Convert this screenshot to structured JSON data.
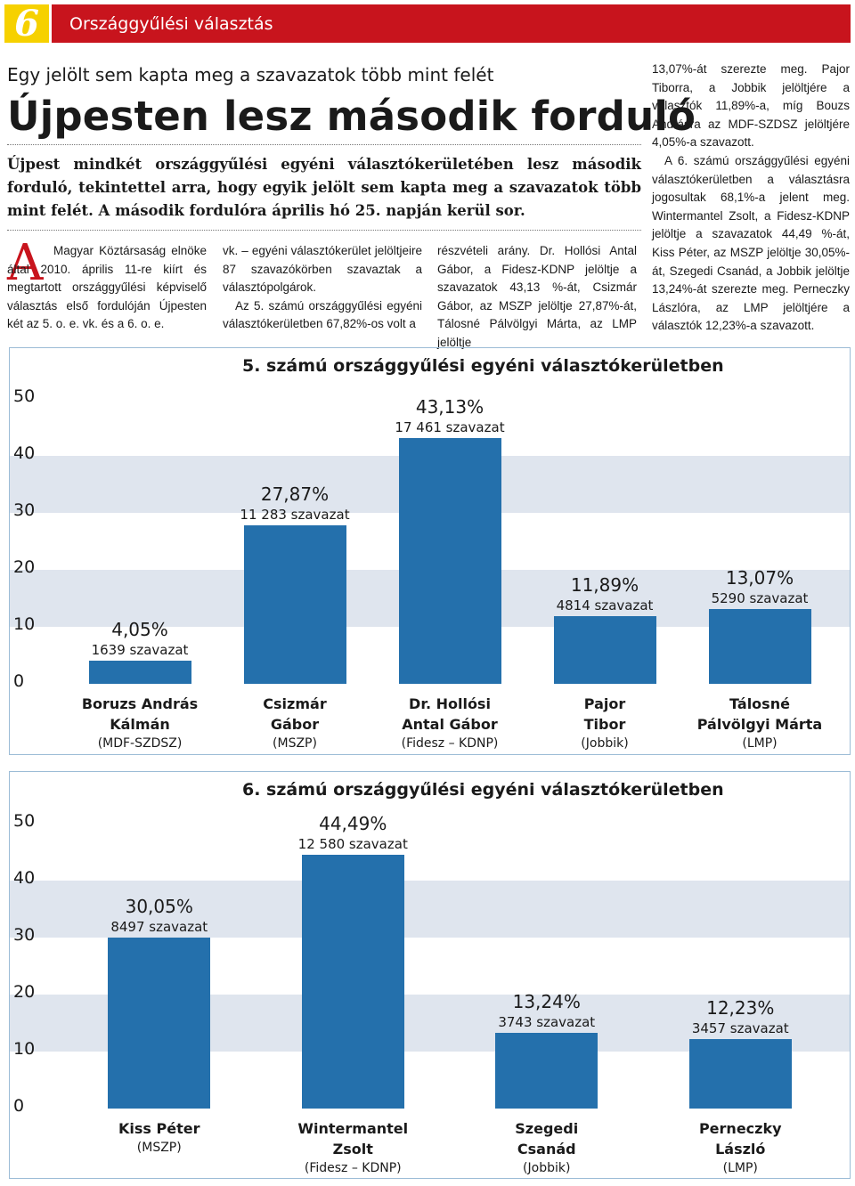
{
  "header": {
    "page_number": "6",
    "section": "Országgyűlési választás"
  },
  "article": {
    "kicker": "Egy jelölt sem kapta meg a szavazatok több mint felét",
    "headline": "Újpesten lesz második forduló",
    "lead": "Újpest mindkét országgyűlési egyéni választókerületében lesz második forduló, tekintettel arra, hogy egyik jelölt sem kapta meg a szavazatok több mint felét. A második fordulóra április hó 25. napján kerül sor.",
    "drop_cap": "A",
    "columns": [
      [
        "Magyar Köztársaság elnöke által 2010. április 11-re kiírt és megtartott országgyűlési képviselő választás első fordulóján Újpesten két az 5. o. e. vk. és a 6. o. e."
      ],
      [
        "vk. – egyéni választókerület jelöltjeire 87 szavazókörben szavaztak a választópolgárok.",
        "Az 5. számú országgyűlési egyéni választókerületben 67,82%-os volt a"
      ],
      [
        "részvételi arány. Dr. Hollósi Antal Gábor, a Fidesz-KDNP jelöltje a szavazatok 43,13 %-át, Csizmár Gábor, az MSZP jelöltje 27,87%-át, Tálosné Pálvölgyi Márta, az LMP jelöltje"
      ],
      [
        "13,07%-át szerezte meg. Pajor Tiborra, a Jobbik jelöltjére a választók 11,89%-a, míg Bouzs Andrásra az MDF-SZDSZ jelöltjére 4,05%-a szavazott.",
        "A 6. számú országgyűlési egyéni választókerületben a választásra jogosultak 68,1%-a jelent meg. Wintermantel Zsolt, a Fidesz-KDNP jelöltje a szavazatok 44,49 %-át, Kiss Péter, az MSZP jelöltje 30,05%-át, Szegedi Csanád, a Jobbik jelöltje 13,24%-át szerezte meg. Perneczky Lászlóra, az LMP jelöltjére a választók 12,23%-a szavazott."
      ]
    ]
  },
  "chart_data": [
    {
      "type": "bar",
      "title": "5. számú országgyűlési egyéni választókerületben",
      "categories": [
        "Boruzs András\nKálmán",
        "Csizmár\nGábor",
        "Dr. Hollósi\nAntal Gábor",
        "Pajor\nTibor",
        "Tálosné\nPálvölgyi Márta"
      ],
      "parties": [
        "(MDF-SZDSZ)",
        "(MSZP)",
        "(Fidesz – KDNP)",
        "(Jobbik)",
        "(LMP)"
      ],
      "values": [
        4.05,
        27.87,
        43.13,
        11.89,
        13.07
      ],
      "value_labels": [
        "4,05%",
        "27,87%",
        "43,13%",
        "11,89%",
        "13,07%"
      ],
      "vote_labels": [
        "1639 szavazat",
        "11 283 szavazat",
        "17 461 szavazat",
        "4814 szavazat",
        "5290 szavazat"
      ],
      "color": "#2470ac",
      "ylim": [
        0,
        50
      ],
      "yticks": [
        0,
        10,
        20,
        30,
        40,
        50
      ]
    },
    {
      "type": "bar",
      "title": "6. számú országgyűlési egyéni választókerületben",
      "categories": [
        "Kiss Péter",
        "Wintermantel\nZsolt",
        "Szegedi\nCsanád",
        "Perneczky\nLászló"
      ],
      "parties": [
        "(MSZP)",
        "(Fidesz – KDNP)",
        "(Jobbik)",
        "(LMP)"
      ],
      "values": [
        30.05,
        44.49,
        13.24,
        12.23
      ],
      "value_labels": [
        "30,05%",
        "44,49%",
        "13,24%",
        "12,23%"
      ],
      "vote_labels": [
        "8497 szavazat",
        "12 580 szavazat",
        "3743 szavazat",
        "3457 szavazat"
      ],
      "color": "#2470ac",
      "ylim": [
        0,
        50
      ],
      "yticks": [
        0,
        10,
        20,
        30,
        40,
        50
      ]
    }
  ]
}
